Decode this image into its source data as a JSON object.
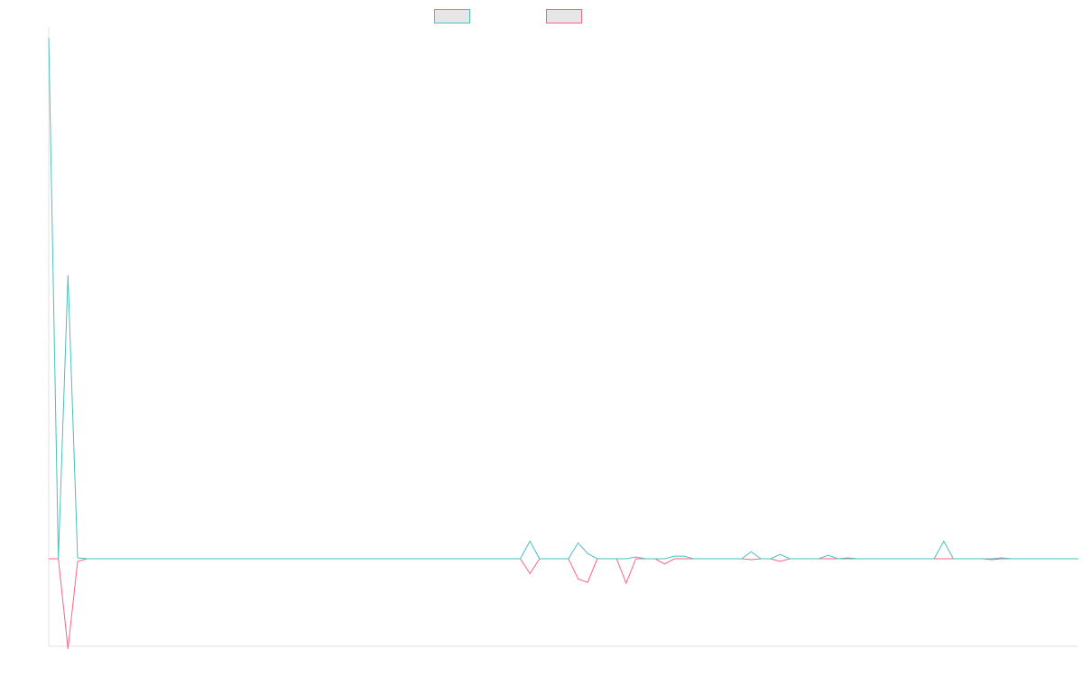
{
  "chart_data": {
    "type": "line",
    "title": "",
    "xlabel": "",
    "ylabel": "",
    "grid": false,
    "legend_placement": "top-center",
    "x_count": 108,
    "ylim": [
      -100,
      600
    ],
    "colors": {
      "series_a": "#4bc0c0",
      "series_b": "#ff6384",
      "legend_fill": "#e6e6e6",
      "axis": "#e0e0e0"
    },
    "series": [
      {
        "key": "series_a",
        "values": [
          595,
          0,
          324,
          1,
          0,
          0,
          0,
          0,
          0,
          0,
          0,
          0,
          0,
          0,
          0,
          0,
          0,
          0,
          0,
          0,
          0,
          0,
          0,
          0,
          0,
          0,
          0,
          0,
          0,
          0,
          0,
          0,
          0,
          0,
          0,
          0,
          0,
          0,
          0,
          0,
          0,
          0,
          0,
          0,
          0,
          0,
          0,
          0,
          0,
          0,
          20,
          0,
          0,
          0,
          0,
          18,
          6,
          0,
          0,
          0,
          0,
          2,
          0,
          0,
          0,
          3,
          3,
          0,
          0,
          0,
          0,
          0,
          0,
          8,
          0,
          0,
          5,
          0,
          0,
          0,
          0,
          4,
          0,
          1,
          0,
          0,
          0,
          0,
          0,
          0,
          0,
          0,
          0,
          20,
          0,
          0,
          0,
          0,
          0,
          1,
          0,
          0,
          0,
          0,
          0,
          0,
          0,
          0
        ]
      },
      {
        "key": "series_b",
        "values": [
          0,
          0,
          -103,
          -3,
          0,
          0,
          0,
          0,
          0,
          0,
          0,
          0,
          0,
          0,
          0,
          0,
          0,
          0,
          0,
          0,
          0,
          0,
          0,
          0,
          0,
          0,
          0,
          0,
          0,
          0,
          0,
          0,
          0,
          0,
          0,
          0,
          0,
          0,
          0,
          0,
          0,
          0,
          0,
          0,
          0,
          0,
          0,
          0,
          0,
          0,
          -17,
          0,
          0,
          0,
          0,
          -23,
          -27,
          0,
          0,
          0,
          -28,
          0,
          0,
          0,
          -6,
          0,
          0,
          0,
          0,
          0,
          0,
          0,
          0,
          -1,
          0,
          0,
          -3,
          0,
          0,
          0,
          0,
          0,
          0,
          0,
          0,
          0,
          0,
          0,
          0,
          0,
          0,
          0,
          0,
          0,
          0,
          0,
          0,
          0,
          -1,
          0,
          0,
          0,
          0,
          0,
          0,
          0,
          0,
          0
        ]
      }
    ]
  }
}
